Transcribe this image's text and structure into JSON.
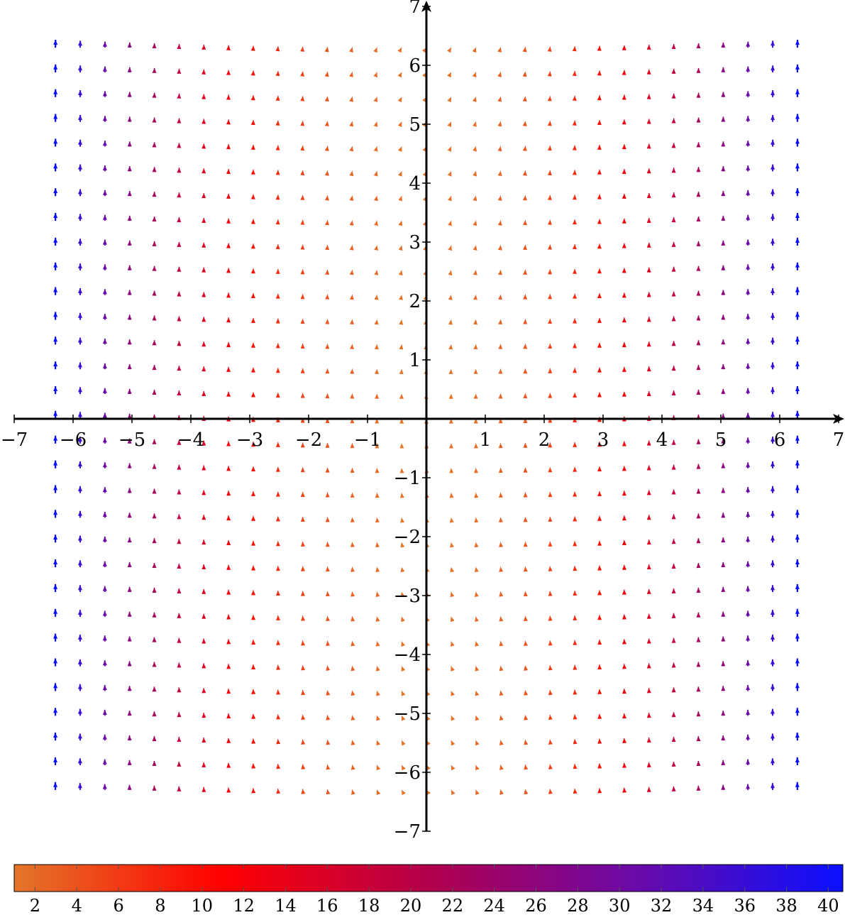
{
  "chart_data": {
    "type": "quiver",
    "field": "vector field with u = y / 10, v = x^2 + 1; arrows coloured by magnitude",
    "xlim": [
      -7,
      7
    ],
    "ylim": [
      -7,
      7
    ],
    "x_sample_range": [
      -6.3,
      6.3
    ],
    "y_sample_range": [
      -6.3,
      6.3
    ],
    "samples": 31,
    "x_ticks": [
      -7,
      -6,
      -5,
      -4,
      -3,
      -2,
      -1,
      1,
      2,
      3,
      4,
      5,
      6,
      7
    ],
    "y_ticks": [
      -7,
      -6,
      -5,
      -4,
      -3,
      -2,
      -1,
      1,
      2,
      3,
      4,
      5,
      6,
      7
    ],
    "x_tick_labels": [
      "−7",
      "−6",
      "−5",
      "−4",
      "−3",
      "−2",
      "−1",
      "1",
      "2",
      "3",
      "4",
      "5",
      "6",
      "7"
    ],
    "y_tick_labels": [
      "−7",
      "−6",
      "−5",
      "−4",
      "−3",
      "−2",
      "−1",
      "1",
      "2",
      "3",
      "4",
      "5",
      "6",
      "7"
    ],
    "colorbar": {
      "min": 1,
      "max": 40.7,
      "ticks": [
        2,
        4,
        6,
        8,
        10,
        12,
        14,
        16,
        18,
        20,
        22,
        24,
        26,
        28,
        30,
        32,
        34,
        36,
        38,
        40
      ],
      "colormap": [
        {
          "at": 0.0,
          "color": "#e3762a"
        },
        {
          "at": 0.25,
          "color": "#ff0000"
        },
        {
          "at": 0.5,
          "color": "#b2004c"
        },
        {
          "at": 0.75,
          "color": "#6a0aa8"
        },
        {
          "at": 1.0,
          "color": "#0a10ff"
        }
      ]
    },
    "grid": false,
    "legend": "colorbar below plot",
    "title": "",
    "xlabel": "",
    "ylabel": ""
  }
}
